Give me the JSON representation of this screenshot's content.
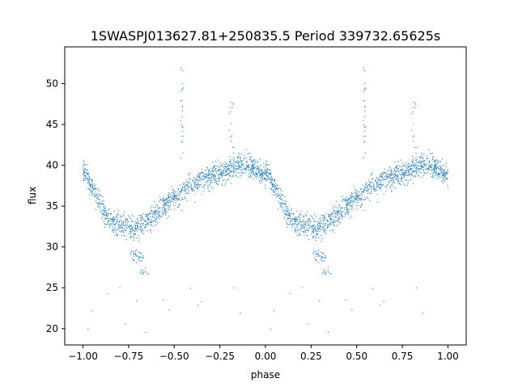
{
  "chart_data": {
    "type": "scatter",
    "title": "1SWASPJ013627.81+250835.5 Period 339732.65625s",
    "xlabel": "phase",
    "ylabel": "flux",
    "xlim": [
      -1.1,
      1.1
    ],
    "ylim": [
      18,
      54.5
    ],
    "x_ticks": [
      -1.0,
      -0.75,
      -0.5,
      -0.25,
      0.0,
      0.25,
      0.5,
      0.75,
      1.0
    ],
    "x_tick_labels": [
      "−1.00",
      "−0.75",
      "−0.50",
      "−0.25",
      "0.00",
      "0.25",
      "0.50",
      "0.75",
      "1.00"
    ],
    "y_ticks": [
      20,
      25,
      30,
      35,
      40,
      45,
      50
    ],
    "y_tick_labels": [
      "20",
      "25",
      "30",
      "35",
      "40",
      "45",
      "50"
    ],
    "grid": false,
    "marker_color": "#1f77b4",
    "series": [
      {
        "trend": {
          "x": [
            0.0,
            0.04,
            0.08,
            0.12,
            0.16,
            0.2,
            0.24,
            0.28,
            0.32,
            0.36,
            0.4,
            0.44,
            0.48,
            0.52,
            0.56,
            0.6,
            0.64,
            0.68,
            0.72,
            0.76,
            0.8,
            0.84,
            0.88,
            0.92,
            0.96,
            1.0
          ],
          "y": [
            39.5,
            37.8,
            36.0,
            34.3,
            33.0,
            32.6,
            32.8,
            32.4,
            32.6,
            33.2,
            34.2,
            35.0,
            35.6,
            36.3,
            37.0,
            37.6,
            38.0,
            38.3,
            38.8,
            39.1,
            39.5,
            40.0,
            40.2,
            39.8,
            39.3,
            38.8
          ]
        },
        "features": [
          {
            "label": "dip",
            "x": [
              0.26,
              0.33
            ],
            "y": 29.5
          },
          {
            "label": "low clump",
            "x": [
              0.31,
              0.36
            ],
            "y": 26.9
          },
          {
            "label": "spike",
            "x": 0.54,
            "y": 51.5
          },
          {
            "label": "spike",
            "x": 0.81,
            "y": 47.5
          }
        ]
      }
    ]
  }
}
